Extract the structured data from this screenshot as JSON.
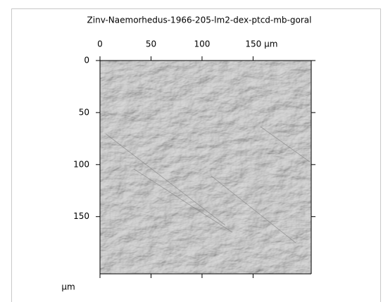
{
  "chart_data": {
    "type": "image",
    "title": "Zinv-Naemorhedus-1966-205-lm2-dex-ptcd-mb-goral",
    "xlim": [
      0,
      207
    ],
    "xticks": [
      0,
      50,
      100,
      {
        "value": 150,
        "label": "150 µm"
      }
    ],
    "ylim": [
      0,
      205
    ],
    "yticks": [
      0,
      50,
      100,
      150
    ],
    "y_unit": "µm"
  }
}
